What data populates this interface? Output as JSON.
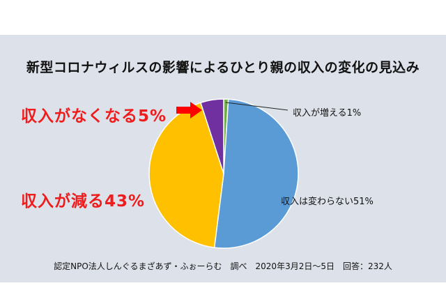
{
  "chart_data": {
    "type": "pie",
    "title": "新型コロナウィルスの影響によるひとり親の収入の変化の見込み",
    "slices": [
      {
        "label": "収入が増える",
        "value": 1,
        "display": "収入が増える1%",
        "color": "#70ad47"
      },
      {
        "label": "収入は変わらない",
        "value": 51,
        "display": "収入は変わらない51%",
        "color": "#5b9bd5"
      },
      {
        "label": "収入が減る",
        "value": 43,
        "display": "収入が減る43%",
        "color": "#ffc000"
      },
      {
        "label": "収入がなくなる",
        "value": 5,
        "display": "収入がなくなる5%",
        "color": "#7030a0"
      }
    ],
    "source": "認定NPO法人しんぐるまざあず・ふぉーらむ　調べ　2020年3月2日〜5日　回答：232人"
  },
  "colors": {
    "background": "#dde1e9",
    "highlight": "#ee1c1c",
    "arrow": "#ff0000",
    "slice_border": "#ffffff"
  }
}
